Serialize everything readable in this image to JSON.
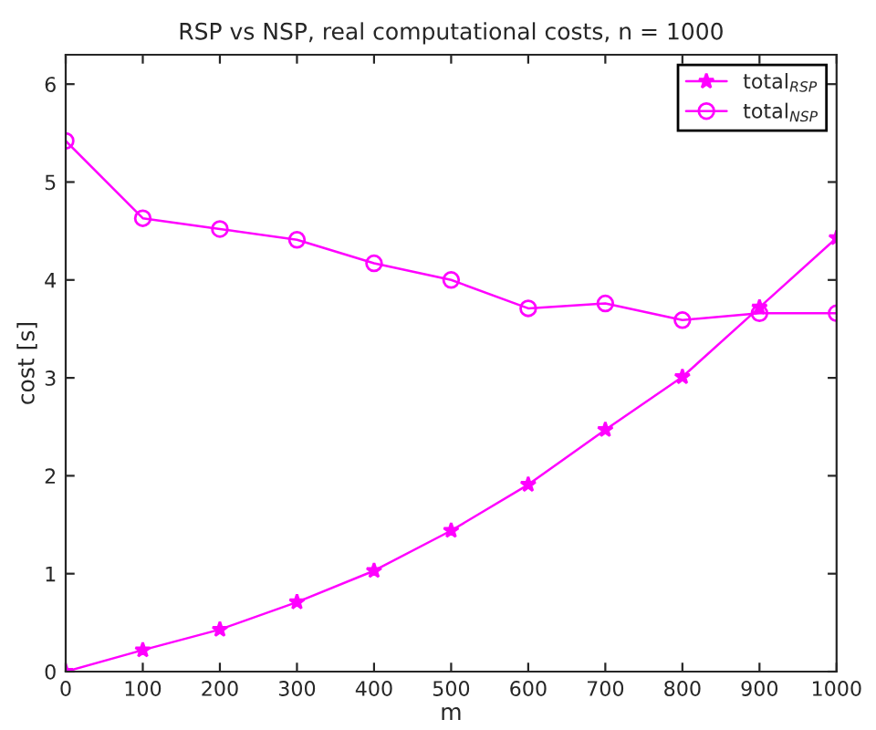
{
  "chart_data": {
    "type": "line",
    "title": "RSP vs NSP, real computational costs, n = 1000",
    "xlabel": "m",
    "ylabel": "cost [s]",
    "x": [
      0,
      100,
      200,
      300,
      400,
      500,
      600,
      700,
      800,
      900,
      1000
    ],
    "series": [
      {
        "name": "total$_{RSP}$",
        "color": "#ff00ff",
        "marker": "star",
        "values": [
          0,
          0.22,
          0.43,
          0.71,
          1.03,
          1.44,
          1.91,
          2.47,
          3.01,
          3.72,
          4.43
        ]
      },
      {
        "name": "total$_{NSP}$",
        "color": "#ff00ff",
        "marker": "circle",
        "values": [
          5.42,
          4.63,
          4.52,
          4.41,
          4.17,
          4.0,
          3.71,
          3.76,
          3.59,
          3.66,
          3.66
        ]
      }
    ],
    "xlim": [
      0,
      1000
    ],
    "xticks": [
      0,
      100,
      200,
      300,
      400,
      500,
      600,
      700,
      800,
      900,
      1000
    ],
    "ylim": [
      0,
      6.3
    ],
    "yticks": [
      0,
      1,
      2,
      3,
      4,
      5,
      6
    ],
    "grid": false,
    "legend": "top right",
    "line_style": "solid"
  }
}
